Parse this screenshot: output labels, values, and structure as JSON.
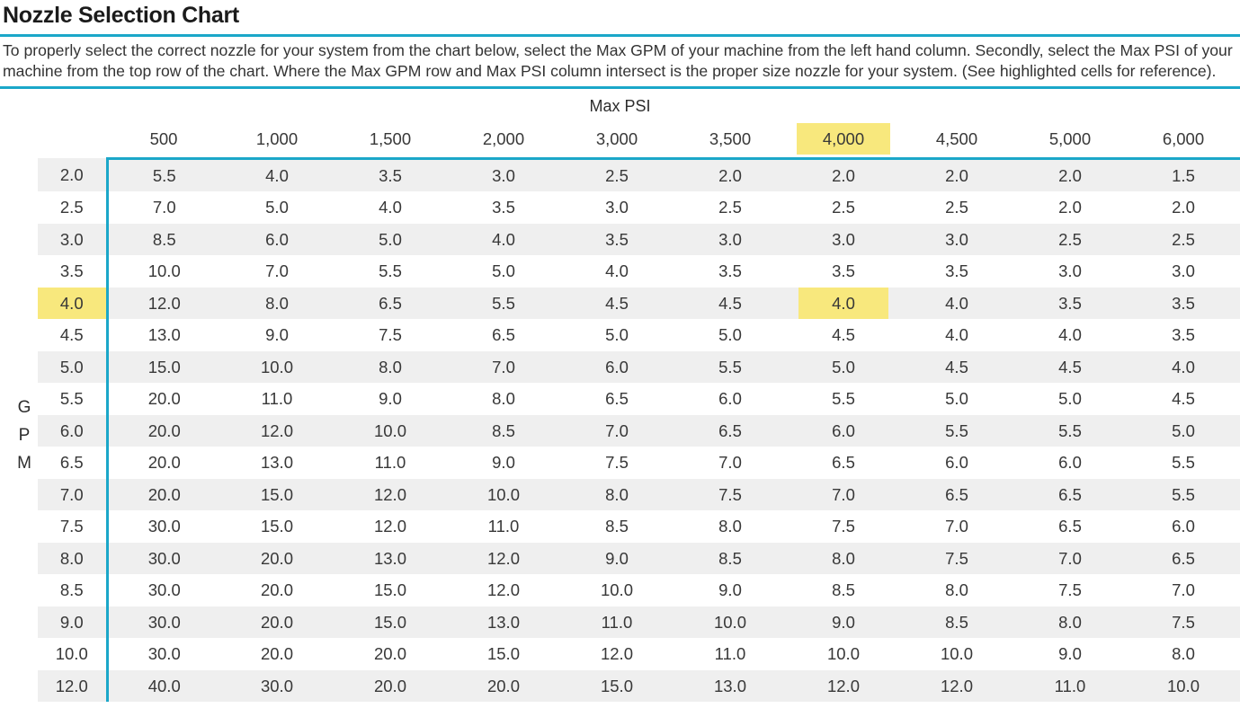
{
  "page": {
    "title": "Nozzle Selection Chart",
    "description": "To properly select the correct nozzle for your system from the chart below, select the Max GPM of your machine from the left hand column. Secondly, select the Max PSI of your machine from the top row of the chart. Where the Max GPM row and Max PSI column intersect is the proper size nozzle for your system. (See highlighted cells for reference).",
    "accent_color": "#1ba7c9",
    "highlight_color": "#f8e87d",
    "stripe_color": "#efefef"
  },
  "chart_data": {
    "type": "table",
    "title": "Nozzle Selection Chart",
    "column_axis_label": "Max PSI",
    "row_axis_label": "GPM",
    "row_axis_letters": [
      "G",
      "P",
      "M"
    ],
    "psi_columns": [
      "500",
      "1,000",
      "1,500",
      "2,000",
      "3,000",
      "3,500",
      "4,000",
      "4,500",
      "5,000",
      "6,000"
    ],
    "gpm_rows": [
      "2.0",
      "2.5",
      "3.0",
      "3.5",
      "4.0",
      "4.5",
      "5.0",
      "5.5",
      "6.0",
      "6.5",
      "7.0",
      "7.5",
      "8.0",
      "8.5",
      "9.0",
      "10.0",
      "12.0"
    ],
    "values": [
      [
        "5.5",
        "4.0",
        "3.5",
        "3.0",
        "2.5",
        "2.0",
        "2.0",
        "2.0",
        "2.0",
        "1.5"
      ],
      [
        "7.0",
        "5.0",
        "4.0",
        "3.5",
        "3.0",
        "2.5",
        "2.5",
        "2.5",
        "2.0",
        "2.0"
      ],
      [
        "8.5",
        "6.0",
        "5.0",
        "4.0",
        "3.5",
        "3.0",
        "3.0",
        "3.0",
        "2.5",
        "2.5"
      ],
      [
        "10.0",
        "7.0",
        "5.5",
        "5.0",
        "4.0",
        "3.5",
        "3.5",
        "3.5",
        "3.0",
        "3.0"
      ],
      [
        "12.0",
        "8.0",
        "6.5",
        "5.5",
        "4.5",
        "4.5",
        "4.0",
        "4.0",
        "3.5",
        "3.5"
      ],
      [
        "13.0",
        "9.0",
        "7.5",
        "6.5",
        "5.0",
        "5.0",
        "4.5",
        "4.0",
        "4.0",
        "3.5"
      ],
      [
        "15.0",
        "10.0",
        "8.0",
        "7.0",
        "6.0",
        "5.5",
        "5.0",
        "4.5",
        "4.5",
        "4.0"
      ],
      [
        "20.0",
        "11.0",
        "9.0",
        "8.0",
        "6.5",
        "6.0",
        "5.5",
        "5.0",
        "5.0",
        "4.5"
      ],
      [
        "20.0",
        "12.0",
        "10.0",
        "8.5",
        "7.0",
        "6.5",
        "6.0",
        "5.5",
        "5.5",
        "5.0"
      ],
      [
        "20.0",
        "13.0",
        "11.0",
        "9.0",
        "7.5",
        "7.0",
        "6.5",
        "6.0",
        "6.0",
        "5.5"
      ],
      [
        "20.0",
        "15.0",
        "12.0",
        "10.0",
        "8.0",
        "7.5",
        "7.0",
        "6.5",
        "6.5",
        "5.5"
      ],
      [
        "30.0",
        "15.0",
        "12.0",
        "11.0",
        "8.5",
        "8.0",
        "7.5",
        "7.0",
        "6.5",
        "6.0"
      ],
      [
        "30.0",
        "20.0",
        "13.0",
        "12.0",
        "9.0",
        "8.5",
        "8.0",
        "7.5",
        "7.0",
        "6.5"
      ],
      [
        "30.0",
        "20.0",
        "15.0",
        "12.0",
        "10.0",
        "9.0",
        "8.5",
        "8.0",
        "7.5",
        "7.0"
      ],
      [
        "30.0",
        "20.0",
        "15.0",
        "13.0",
        "11.0",
        "10.0",
        "9.0",
        "8.5",
        "8.0",
        "7.5"
      ],
      [
        "30.0",
        "20.0",
        "20.0",
        "15.0",
        "12.0",
        "11.0",
        "10.0",
        "10.0",
        "9.0",
        "8.0"
      ],
      [
        "40.0",
        "30.0",
        "20.0",
        "20.0",
        "15.0",
        "13.0",
        "12.0",
        "12.0",
        "11.0",
        "10.0"
      ]
    ],
    "highlight": {
      "gpm_row": "4.0",
      "psi_col": "4,000",
      "intersect_value": "4.0"
    },
    "layout": {
      "stripe_rows": "odd rows shaded",
      "border": "teal line on top and left of data area"
    }
  }
}
